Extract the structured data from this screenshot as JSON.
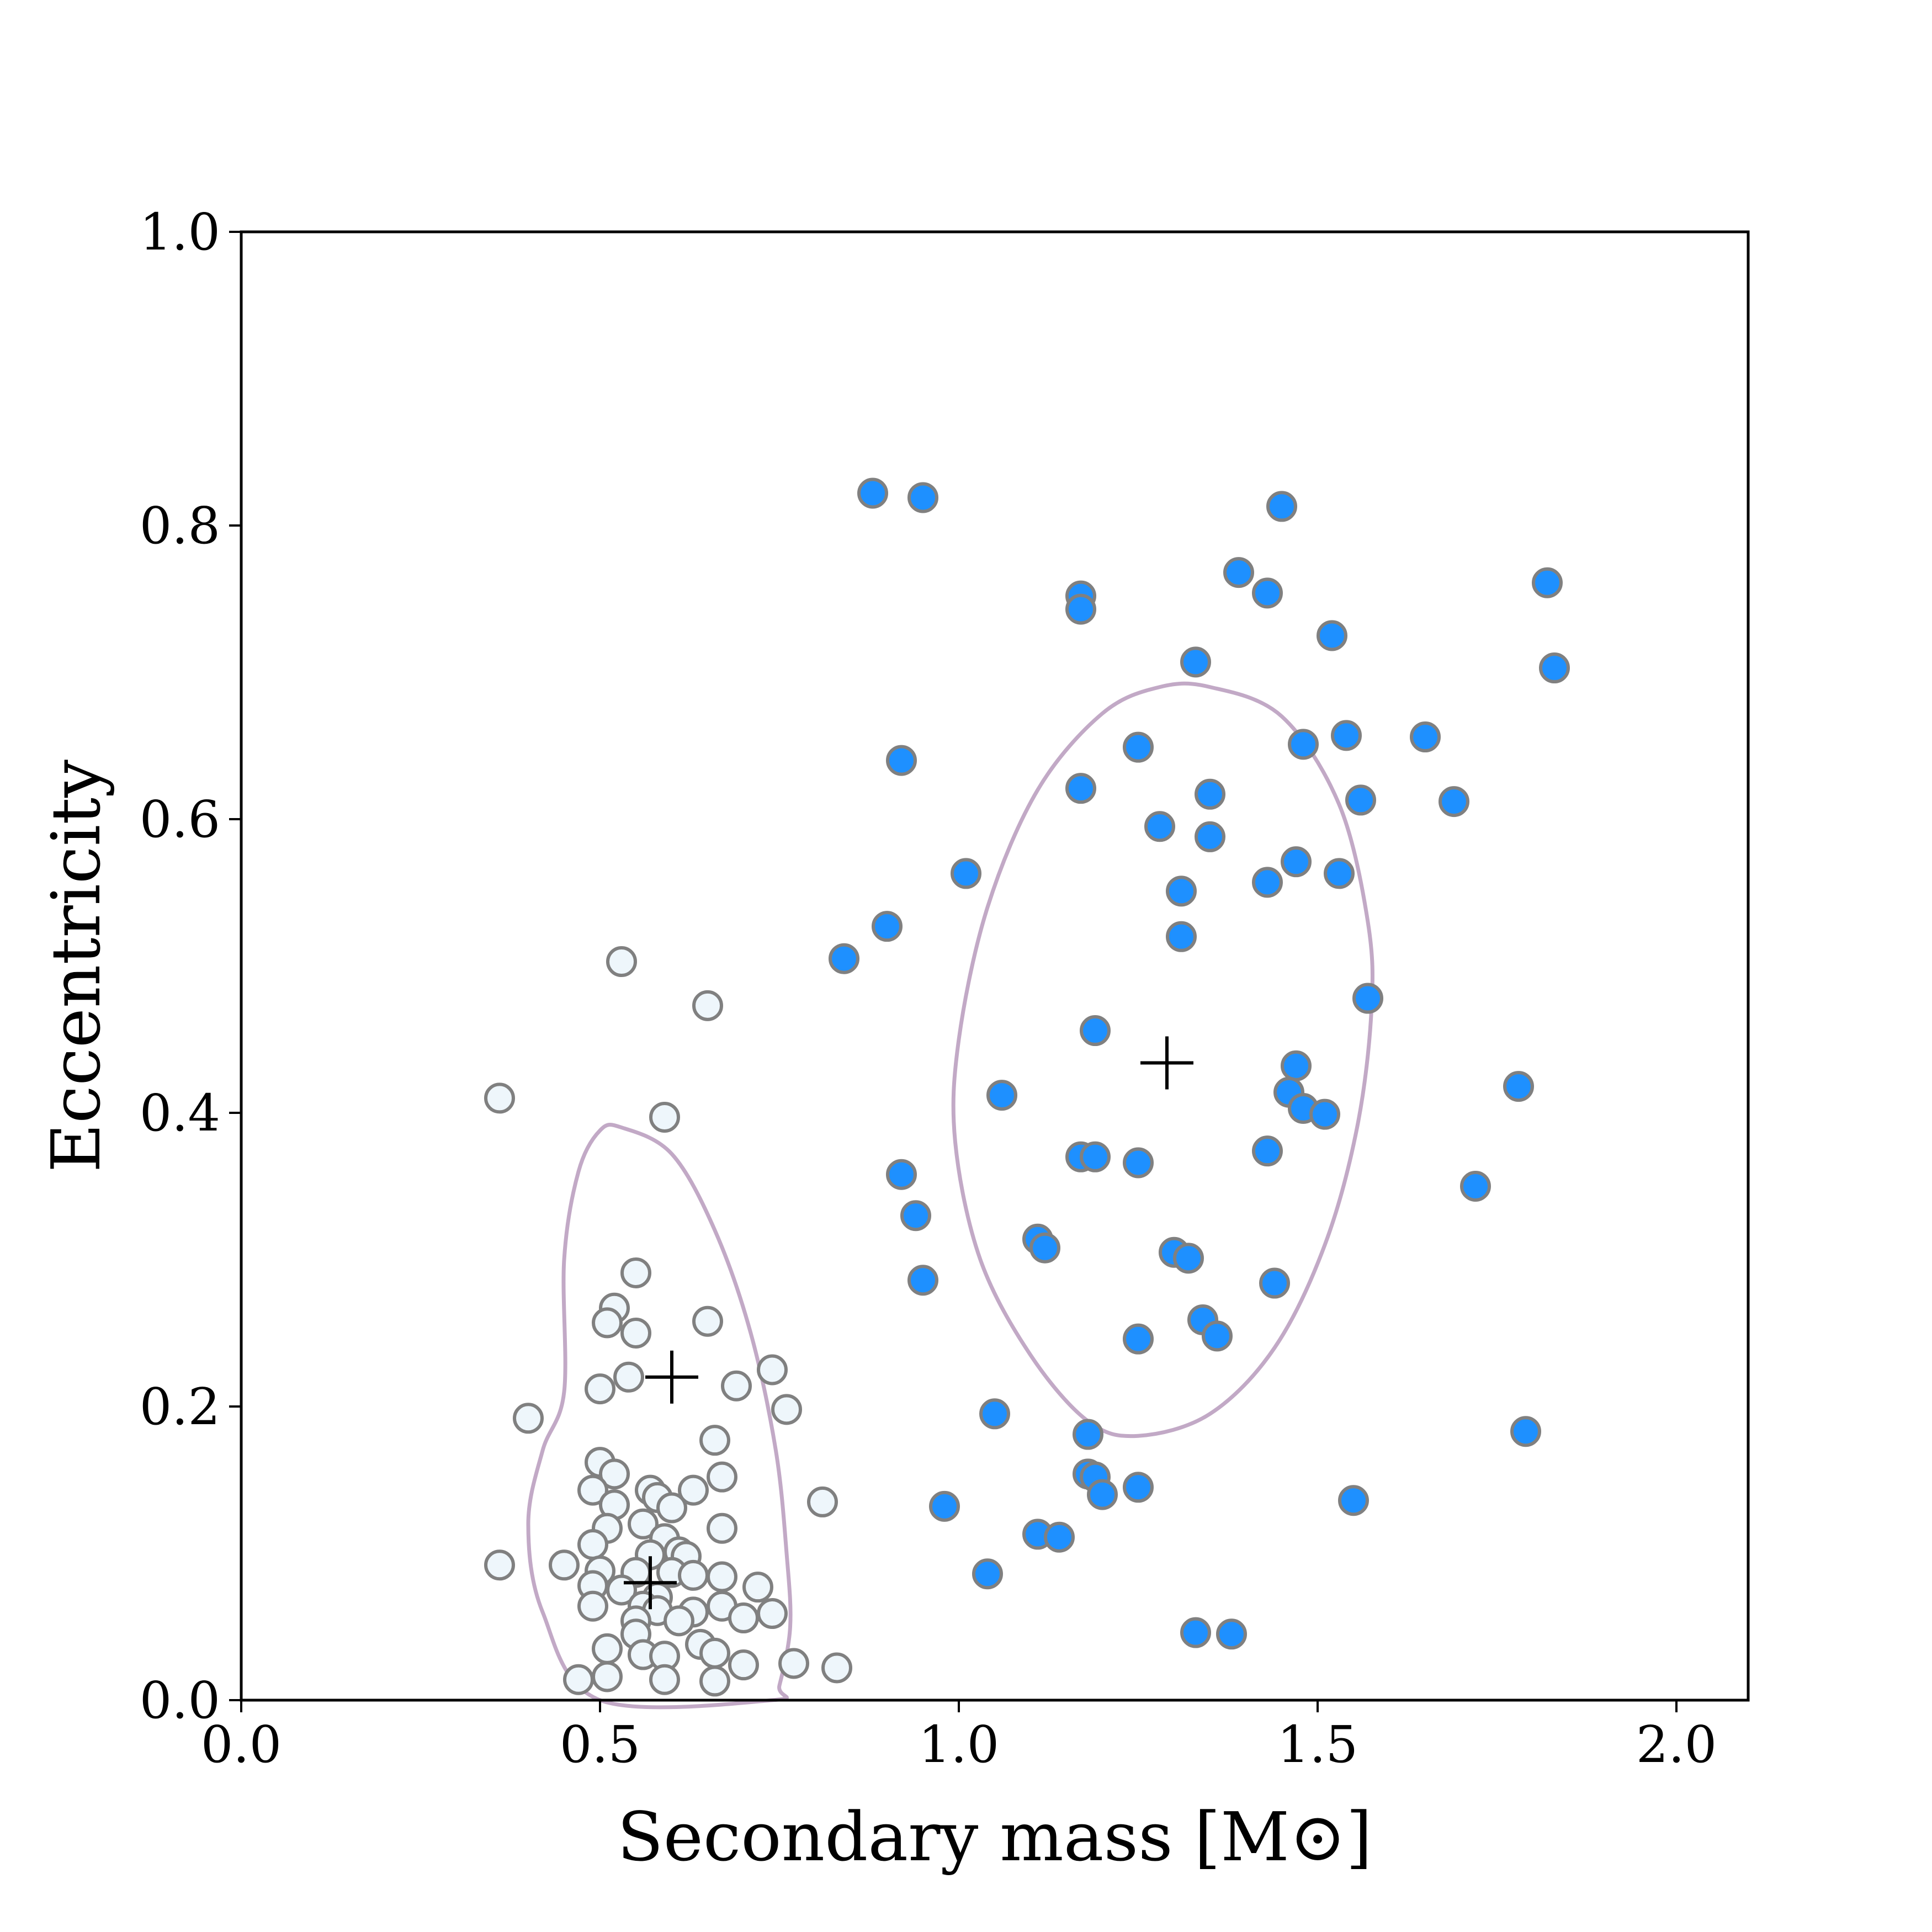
{
  "chart_data": {
    "type": "scatter",
    "title": "",
    "xlabel": "Secondary mass [M⊙]",
    "ylabel": "Eccentricity",
    "xlim": [
      0.0,
      2.1
    ],
    "ylim": [
      0.0,
      1.0
    ],
    "xticks": [
      0.0,
      0.5,
      1.0,
      1.5,
      2.0
    ],
    "yticks": [
      0.0,
      0.2,
      0.4,
      0.6,
      0.8,
      1.0
    ],
    "grid": false,
    "colors": {
      "filled": "#1e90ff",
      "open_fill": "#eef6fb",
      "edge": "#808080",
      "contour": "#c2a9c6",
      "marker": "#000000"
    },
    "series": [
      {
        "style": "filled",
        "points": [
          [
            0.88,
            0.822
          ],
          [
            0.95,
            0.819
          ],
          [
            1.45,
            0.813
          ],
          [
            1.39,
            0.768
          ],
          [
            1.43,
            0.754
          ],
          [
            1.17,
            0.752
          ],
          [
            1.17,
            0.743
          ],
          [
            1.52,
            0.725
          ],
          [
            1.33,
            0.707
          ],
          [
            1.82,
            0.761
          ],
          [
            1.83,
            0.703
          ],
          [
            1.25,
            0.649
          ],
          [
            1.48,
            0.651
          ],
          [
            1.54,
            0.657
          ],
          [
            1.65,
            0.656
          ],
          [
            0.92,
            0.64
          ],
          [
            1.17,
            0.621
          ],
          [
            1.35,
            0.617
          ],
          [
            1.56,
            0.613
          ],
          [
            1.69,
            0.612
          ],
          [
            1.28,
            0.595
          ],
          [
            1.35,
            0.588
          ],
          [
            1.01,
            0.563
          ],
          [
            1.47,
            0.571
          ],
          [
            1.53,
            0.563
          ],
          [
            1.43,
            0.557
          ],
          [
            1.31,
            0.551
          ],
          [
            0.9,
            0.527
          ],
          [
            1.31,
            0.52
          ],
          [
            0.84,
            0.505
          ],
          [
            1.57,
            0.478
          ],
          [
            1.19,
            0.456
          ],
          [
            1.47,
            0.432
          ],
          [
            1.06,
            0.412
          ],
          [
            1.46,
            0.414
          ],
          [
            1.48,
            0.403
          ],
          [
            1.51,
            0.399
          ],
          [
            1.78,
            0.418
          ],
          [
            1.17,
            0.37
          ],
          [
            1.19,
            0.37
          ],
          [
            1.25,
            0.366
          ],
          [
            1.43,
            0.374
          ],
          [
            0.92,
            0.358
          ],
          [
            1.72,
            0.35
          ],
          [
            0.94,
            0.33
          ],
          [
            1.11,
            0.314
          ],
          [
            1.12,
            0.308
          ],
          [
            1.3,
            0.305
          ],
          [
            1.32,
            0.301
          ],
          [
            0.95,
            0.286
          ],
          [
            1.44,
            0.284
          ],
          [
            1.34,
            0.259
          ],
          [
            1.36,
            0.248
          ],
          [
            1.25,
            0.246
          ],
          [
            1.05,
            0.195
          ],
          [
            1.18,
            0.181
          ],
          [
            1.79,
            0.183
          ],
          [
            1.18,
            0.154
          ],
          [
            1.19,
            0.152
          ],
          [
            1.2,
            0.14
          ],
          [
            1.25,
            0.145
          ],
          [
            1.55,
            0.136
          ],
          [
            0.98,
            0.132
          ],
          [
            1.11,
            0.113
          ],
          [
            1.14,
            0.111
          ],
          [
            1.04,
            0.086
          ],
          [
            1.33,
            0.046
          ],
          [
            1.38,
            0.045
          ]
        ]
      },
      {
        "style": "open",
        "points": [
          [
            0.53,
            0.503
          ],
          [
            0.65,
            0.473
          ],
          [
            0.36,
            0.41
          ],
          [
            0.59,
            0.397
          ],
          [
            0.55,
            0.291
          ],
          [
            0.52,
            0.267
          ],
          [
            0.51,
            0.257
          ],
          [
            0.55,
            0.25
          ],
          [
            0.65,
            0.258
          ],
          [
            0.54,
            0.22
          ],
          [
            0.5,
            0.212
          ],
          [
            0.69,
            0.214
          ],
          [
            0.74,
            0.225
          ],
          [
            0.76,
            0.198
          ],
          [
            0.4,
            0.192
          ],
          [
            0.66,
            0.177
          ],
          [
            0.5,
            0.162
          ],
          [
            0.52,
            0.154
          ],
          [
            0.67,
            0.152
          ],
          [
            0.49,
            0.143
          ],
          [
            0.57,
            0.143
          ],
          [
            0.63,
            0.143
          ],
          [
            0.58,
            0.138
          ],
          [
            0.52,
            0.133
          ],
          [
            0.6,
            0.131
          ],
          [
            0.81,
            0.135
          ],
          [
            0.56,
            0.12
          ],
          [
            0.51,
            0.117
          ],
          [
            0.67,
            0.117
          ],
          [
            0.59,
            0.11
          ],
          [
            0.49,
            0.106
          ],
          [
            0.61,
            0.101
          ],
          [
            0.62,
            0.098
          ],
          [
            0.57,
            0.099
          ],
          [
            0.45,
            0.092
          ],
          [
            0.36,
            0.092
          ],
          [
            0.5,
            0.088
          ],
          [
            0.55,
            0.087
          ],
          [
            0.6,
            0.087
          ],
          [
            0.63,
            0.085
          ],
          [
            0.49,
            0.078
          ],
          [
            0.67,
            0.084
          ],
          [
            0.53,
            0.075
          ],
          [
            0.58,
            0.07
          ],
          [
            0.72,
            0.077
          ],
          [
            0.49,
            0.064
          ],
          [
            0.56,
            0.064
          ],
          [
            0.58,
            0.061
          ],
          [
            0.63,
            0.06
          ],
          [
            0.67,
            0.064
          ],
          [
            0.7,
            0.056
          ],
          [
            0.74,
            0.059
          ],
          [
            0.55,
            0.054
          ],
          [
            0.61,
            0.054
          ],
          [
            0.55,
            0.045
          ],
          [
            0.64,
            0.038
          ],
          [
            0.51,
            0.035
          ],
          [
            0.66,
            0.032
          ],
          [
            0.56,
            0.031
          ],
          [
            0.59,
            0.03
          ],
          [
            0.7,
            0.024
          ],
          [
            0.77,
            0.025
          ],
          [
            0.83,
            0.022
          ],
          [
            0.51,
            0.016
          ],
          [
            0.47,
            0.014
          ],
          [
            0.59,
            0.014
          ],
          [
            0.66,
            0.013
          ]
        ]
      }
    ],
    "contours": [
      [
        [
          0.53,
          0.39
        ],
        [
          0.6,
          0.372
        ],
        [
          0.66,
          0.32
        ],
        [
          0.71,
          0.25
        ],
        [
          0.745,
          0.17
        ],
        [
          0.76,
          0.1
        ],
        [
          0.765,
          0.05
        ],
        [
          0.75,
          0.01
        ],
        [
          0.74,
          0.0
        ],
        [
          0.5,
          0.0
        ],
        [
          0.42,
          0.06
        ],
        [
          0.4,
          0.12
        ],
        [
          0.42,
          0.17
        ],
        [
          0.45,
          0.21
        ],
        [
          0.45,
          0.3
        ],
        [
          0.47,
          0.36
        ],
        [
          0.5,
          0.388
        ]
      ],
      [
        [
          1.35,
          0.69
        ],
        [
          1.45,
          0.67
        ],
        [
          1.53,
          0.61
        ],
        [
          1.57,
          0.53
        ],
        [
          1.575,
          0.47
        ],
        [
          1.555,
          0.39
        ],
        [
          1.51,
          0.31
        ],
        [
          1.44,
          0.24
        ],
        [
          1.35,
          0.195
        ],
        [
          1.25,
          0.18
        ],
        [
          1.18,
          0.19
        ],
        [
          1.1,
          0.235
        ],
        [
          1.03,
          0.3
        ],
        [
          0.995,
          0.38
        ],
        [
          1.0,
          0.45
        ],
        [
          1.04,
          0.54
        ],
        [
          1.11,
          0.62
        ],
        [
          1.2,
          0.672
        ],
        [
          1.28,
          0.69
        ]
      ]
    ],
    "centroids": [
      [
        1.29,
        0.434
      ],
      [
        0.6,
        0.22
      ],
      [
        0.57,
        0.08
      ]
    ]
  }
}
